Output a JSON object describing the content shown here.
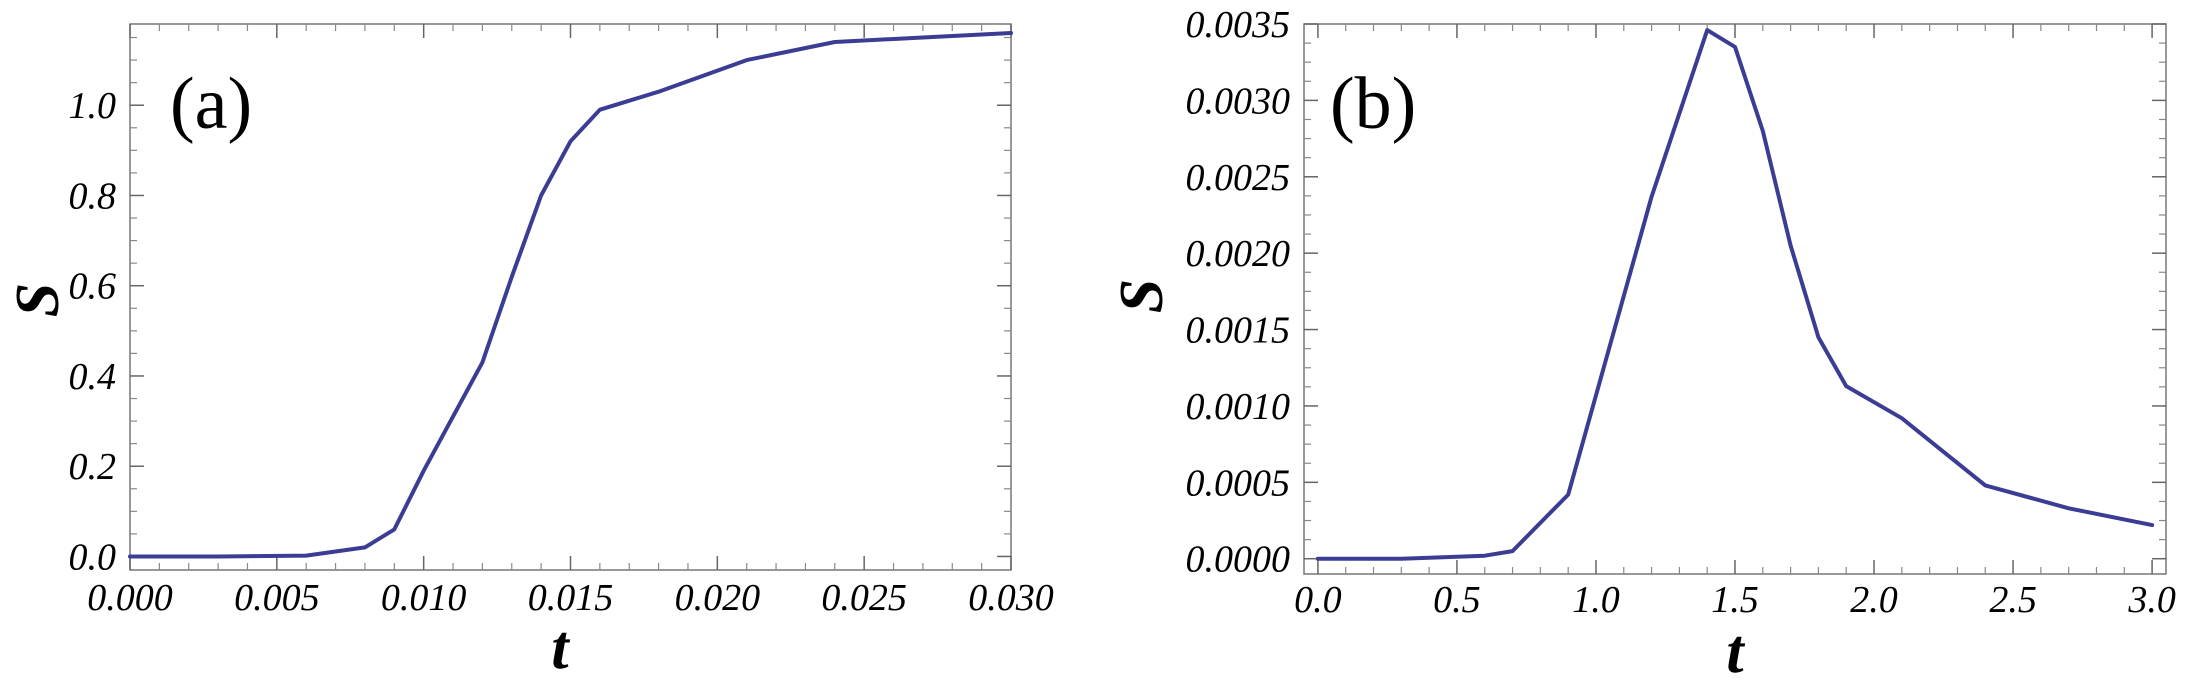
{
  "chart_data": [
    {
      "type": "line",
      "panel_label": "(a)",
      "xlabel": "t",
      "ylabel": "S",
      "xlim": [
        0,
        0.03
      ],
      "ylim": [
        -0.03,
        1.18
      ],
      "xticks": [
        0.0,
        0.005,
        0.01,
        0.015,
        0.02,
        0.025,
        0.03
      ],
      "xtick_labels": [
        "0.000",
        "0.005",
        "0.010",
        "0.015",
        "0.020",
        "0.025",
        "0.030"
      ],
      "yticks": [
        0.0,
        0.2,
        0.4,
        0.6,
        0.8,
        1.0
      ],
      "ytick_labels": [
        "0.0",
        "0.2",
        "0.4",
        "0.6",
        "0.8",
        "1.0"
      ],
      "grid": false,
      "line_color": "#3b3d94",
      "series": [
        {
          "x": [
            0.0,
            0.003,
            0.006,
            0.008,
            0.009,
            0.01,
            0.011,
            0.012,
            0.013,
            0.014,
            0.015,
            0.016,
            0.018,
            0.021,
            0.024,
            0.027,
            0.03
          ],
          "y": [
            0.0,
            0.0,
            0.002,
            0.02,
            0.06,
            0.19,
            0.31,
            0.43,
            0.62,
            0.8,
            0.92,
            0.99,
            1.03,
            1.1,
            1.14,
            1.15,
            1.16
          ]
        }
      ]
    },
    {
      "type": "line",
      "panel_label": "(b)",
      "xlabel": "t",
      "ylabel": "S",
      "xlim": [
        -0.05,
        3.05
      ],
      "ylim": [
        -0.0001,
        0.0035
      ],
      "xticks": [
        0.0,
        0.5,
        1.0,
        1.5,
        2.0,
        2.5,
        3.0
      ],
      "xtick_labels": [
        "0.0",
        "0.5",
        "1.0",
        "1.5",
        "2.0",
        "2.5",
        "3.0"
      ],
      "yticks": [
        0.0,
        0.0005,
        0.001,
        0.0015,
        0.002,
        0.0025,
        0.003,
        0.0035
      ],
      "ytick_labels": [
        "0.0000",
        "0.0005",
        "0.0010",
        "0.0015",
        "0.0020",
        "0.0025",
        "0.0030",
        "0.0035"
      ],
      "grid": false,
      "line_color": "#3b3d94",
      "series": [
        {
          "x": [
            0.0,
            0.3,
            0.6,
            0.7,
            0.9,
            1.2,
            1.4,
            1.5,
            1.6,
            1.7,
            1.8,
            1.9,
            2.1,
            2.4,
            2.7,
            3.0
          ],
          "y": [
            0.0,
            0.0,
            2e-05,
            5e-05,
            0.00042,
            0.00237,
            0.00346,
            0.00335,
            0.0028,
            0.00205,
            0.00145,
            0.00113,
            0.00092,
            0.00048,
            0.00033,
            0.00022
          ]
        }
      ]
    }
  ]
}
